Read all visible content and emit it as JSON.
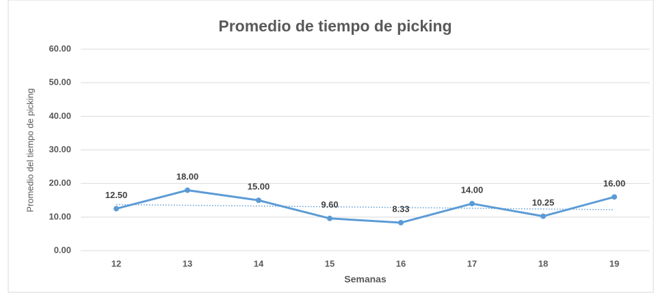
{
  "chart_data": {
    "type": "line",
    "title": "Promedio de tiempo de picking",
    "x_label": "Semanas",
    "y_label": "Promedio del tiempo de picking",
    "categories": [
      "12",
      "13",
      "14",
      "15",
      "16",
      "17",
      "18",
      "19"
    ],
    "values": [
      12.5,
      18,
      15,
      9.6,
      8.33,
      14,
      10.25,
      16
    ],
    "value_labels": [
      "12.50",
      "18.00",
      "15.00",
      "9.60",
      "8.33",
      "14.00",
      "10.25",
      "16.00"
    ],
    "color": "#5b9bd5",
    "trendline": true,
    "ylim": [
      0,
      60
    ],
    "yticks": [
      {
        "value": 0,
        "label": "0.00"
      },
      {
        "value": 10,
        "label": "10.00"
      },
      {
        "value": 20,
        "label": "20.00"
      },
      {
        "value": 30,
        "label": "30.00"
      },
      {
        "value": 40,
        "label": "40.00"
      },
      {
        "value": 50,
        "label": "50.00"
      },
      {
        "value": 60,
        "label": "60.00"
      }
    ],
    "grid": true
  }
}
